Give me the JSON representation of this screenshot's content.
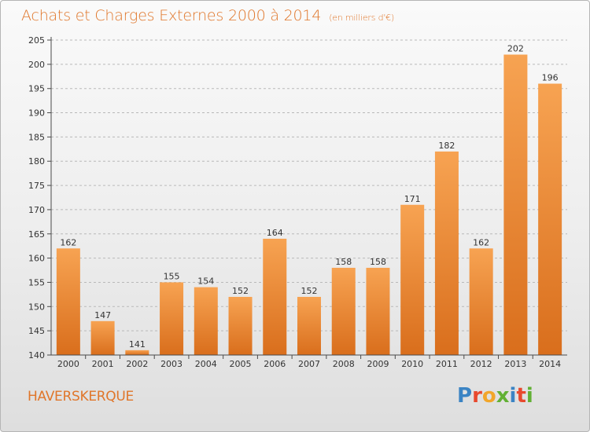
{
  "header": {
    "title": "Achats et Charges Externes 2000 à 2014",
    "subtitle": "(en milliers d'€)"
  },
  "footer": {
    "town": "HAVERSKERQUE",
    "brand": "Proxiti",
    "brand_colors": [
      "#3b84c4",
      "#e8492e",
      "#f2a62a",
      "#62b034",
      "#3b84c4",
      "#e8492e",
      "#62b034"
    ]
  },
  "colors": {
    "accent": "#e0762a",
    "bar_top": "#f7a352",
    "bar_bottom": "#d96e1c",
    "grid": "#b9b9b9",
    "axis": "#4a4a4a"
  },
  "chart_data": {
    "type": "bar",
    "title": "Achats et Charges Externes 2000 à 2014",
    "subtitle": "(en milliers d'€)",
    "categories": [
      "2000",
      "2001",
      "2002",
      "2003",
      "2004",
      "2005",
      "2006",
      "2007",
      "2008",
      "2009",
      "2010",
      "2011",
      "2012",
      "2013",
      "2014"
    ],
    "values": [
      162,
      147,
      141,
      155,
      154,
      152,
      164,
      152,
      158,
      158,
      171,
      182,
      162,
      202,
      196
    ],
    "ylim": [
      140,
      205
    ],
    "yticks": [
      140,
      145,
      150,
      155,
      160,
      165,
      170,
      175,
      180,
      185,
      190,
      195,
      200,
      205
    ],
    "grid": true,
    "xlabel": "",
    "ylabel": ""
  }
}
